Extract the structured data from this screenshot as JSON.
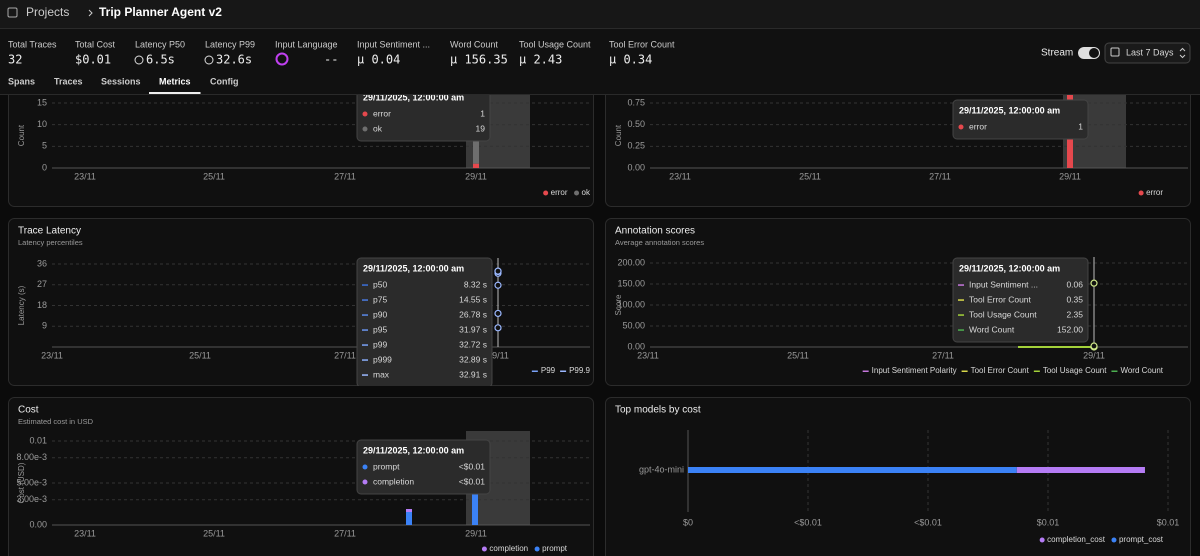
{
  "header": {
    "root": "Projects",
    "project": "Trip Planner Agent v2"
  },
  "stats": [
    {
      "label": "Total Traces",
      "value": "32"
    },
    {
      "label": "Total Cost",
      "value": "$0.01"
    },
    {
      "label": "Latency P50",
      "value": "6.5s"
    },
    {
      "label": "Latency P99",
      "value": "32.6s"
    },
    {
      "label": "Input Language",
      "value": "--"
    },
    {
      "label": "Input Sentiment ...",
      "value": "μ 0.04"
    },
    {
      "label": "Word Count",
      "value": "μ 156.35"
    },
    {
      "label": "Tool Usage Count",
      "value": "μ 2.43"
    },
    {
      "label": "Tool Error Count",
      "value": "μ 0.34"
    }
  ],
  "controls": {
    "stream": "Stream",
    "time_range": "Last 7 Days"
  },
  "tabs": {
    "items": [
      "Spans",
      "Traces",
      "Sessions",
      "Metrics",
      "Config"
    ],
    "active": 3
  },
  "panels": [
    {
      "kind": "stack",
      "y_label": "Count",
      "ylim": [
        0,
        15
      ],
      "yticks": [
        0,
        5,
        10,
        15
      ],
      "xticks": [
        "23/11",
        "25/11",
        "27/11",
        "29/11"
      ],
      "legend": [
        {
          "name": "error",
          "color": "#e5484d"
        },
        {
          "name": "ok",
          "color": "#6e6e6e"
        }
      ],
      "tooltip": {
        "title": "29/11/2025, 12:00:00 am",
        "rows": [
          {
            "name": "error",
            "value": 1,
            "color": "#e5484d"
          },
          {
            "name": "ok",
            "value": 19,
            "color": "#6e6e6e"
          }
        ]
      }
    },
    {
      "kind": "stack",
      "y_label": "Count",
      "ylim": [
        0,
        0.75
      ],
      "yticks": [
        {
          "value": 0,
          "label": "0.00"
        },
        {
          "value": 0.25,
          "label": "0.25"
        },
        {
          "value": 0.5,
          "label": "0.50"
        },
        {
          "value": 0.75,
          "label": "0.75"
        }
      ],
      "xticks": [
        "23/11",
        "25/11",
        "27/11",
        "29/11"
      ],
      "legend": [
        {
          "name": "error",
          "color": "#e5484d"
        }
      ],
      "tooltip": {
        "title": "29/11/2025, 12:00:00 am",
        "rows": [
          {
            "name": "error",
            "value": 1,
            "color": "#e5484d"
          }
        ]
      }
    },
    {
      "kind": "points",
      "title": "Trace Latency",
      "subtitle": "Latency percentiles",
      "y_label": "Latency (s)",
      "ylim": [
        0,
        36
      ],
      "yticks": [
        9,
        18,
        27,
        36
      ],
      "xticks": [
        "23/11",
        "25/11",
        "27/11",
        "29/11"
      ],
      "legend": [
        {
          "name": "P99",
          "color": "#7aa2f7"
        },
        {
          "name": "P99.9",
          "color": "#9bb8ff"
        }
      ],
      "tooltip": {
        "title": "29/11/2025, 12:00:00 am",
        "rows": [
          {
            "name": "p50",
            "value": 8.32,
            "label": "8.32 s",
            "color": "#3b6fd8"
          },
          {
            "name": "p75",
            "value": 14.55,
            "label": "14.55 s",
            "color": "#4a7be0"
          },
          {
            "name": "p90",
            "value": 26.78,
            "label": "26.78 s",
            "color": "#5a88e8"
          },
          {
            "name": "p95",
            "value": 31.97,
            "label": "31.97 s",
            "color": "#6a95ee"
          },
          {
            "name": "p99",
            "value": 32.72,
            "label": "32.72 s",
            "color": "#7aa2f7"
          },
          {
            "name": "p999",
            "value": 32.89,
            "label": "32.89 s",
            "color": "#8aaefa"
          },
          {
            "name": "max",
            "value": 32.91,
            "label": "32.91 s",
            "color": "#9bb8ff"
          }
        ]
      }
    },
    {
      "kind": "points",
      "title": "Annotation scores",
      "subtitle": "Average annotation scores",
      "y_label": "Score",
      "ylim": [
        0,
        200
      ],
      "yticks": [
        {
          "value": 0,
          "label": "0.00"
        },
        {
          "value": 50,
          "label": "50.00"
        },
        {
          "value": 100,
          "label": "100.00"
        },
        {
          "value": 150,
          "label": "150.00"
        },
        {
          "value": 200,
          "label": "200.00"
        }
      ],
      "xticks": [
        "23/11",
        "25/11",
        "27/11",
        "29/11"
      ],
      "legend": [
        {
          "name": "Input Sentiment Polarity",
          "color": "#c678dd"
        },
        {
          "name": "Tool Error Count",
          "color": "#d8d84a"
        },
        {
          "name": "Tool Usage Count",
          "color": "#a3d13a"
        },
        {
          "name": "Word Count",
          "color": "#4caf50"
        }
      ],
      "tooltip": {
        "title": "29/11/2025, 12:00:00 am",
        "rows": [
          {
            "name": "Input Sentiment ...",
            "value": 0.06,
            "color": "#c678dd"
          },
          {
            "name": "Tool Error Count",
            "value": 0.35,
            "color": "#d8d84a"
          },
          {
            "name": "Tool Usage Count",
            "value": 2.35,
            "color": "#a3d13a"
          },
          {
            "name": "Word Count",
            "value": 152,
            "label": "152.00",
            "color": "#4caf50"
          }
        ]
      }
    },
    {
      "kind": "cost",
      "title": "Cost",
      "subtitle": "Estimated cost in USD",
      "y_label": "Cost (USD)",
      "ylim": [
        0,
        0.01
      ],
      "yticks": [
        {
          "value": 0,
          "label": "0.00"
        },
        {
          "value": 0.003,
          "label": "3.00e-3"
        },
        {
          "value": 0.005,
          "label": "5.00e-3"
        },
        {
          "value": 0.008,
          "label": "8.00e-3"
        },
        0.01
      ],
      "xticks": [
        "23/11",
        "25/11",
        "27/11",
        "29/11"
      ],
      "legend": [
        {
          "name": "completion",
          "color": "#b57cf5"
        },
        {
          "name": "prompt",
          "color": "#3b82f6"
        }
      ],
      "tooltip": {
        "title": "29/11/2025, 12:00:00 am",
        "rows": [
          {
            "name": "prompt",
            "label": "<$0.01",
            "color": "#3b82f6"
          },
          {
            "name": "completion",
            "label": "<$0.01",
            "color": "#b57cf5"
          }
        ]
      }
    },
    {
      "kind": "hbar",
      "title": "Top models by cost",
      "categories": [
        "gpt-4o-mini"
      ],
      "xlim": [
        0,
        0.01
      ],
      "xticks": [
        {
          "value": 0,
          "label": "$0"
        },
        {
          "value": 0.0025,
          "label": "<$0.01"
        },
        {
          "value": 0.005,
          "label": "<$0.01"
        },
        {
          "value": 0.0075,
          "label": "$0.01"
        },
        {
          "value": 0.01,
          "label": "$0.01"
        }
      ],
      "series": [
        {
          "name": "prompt_cost",
          "color": "#3b82f6",
          "values": [
            0.00685
          ]
        },
        {
          "name": "completion_cost",
          "color": "#b57cf5",
          "values": [
            0.00267
          ]
        }
      ],
      "legend_order": [
        1,
        0
      ]
    }
  ]
}
